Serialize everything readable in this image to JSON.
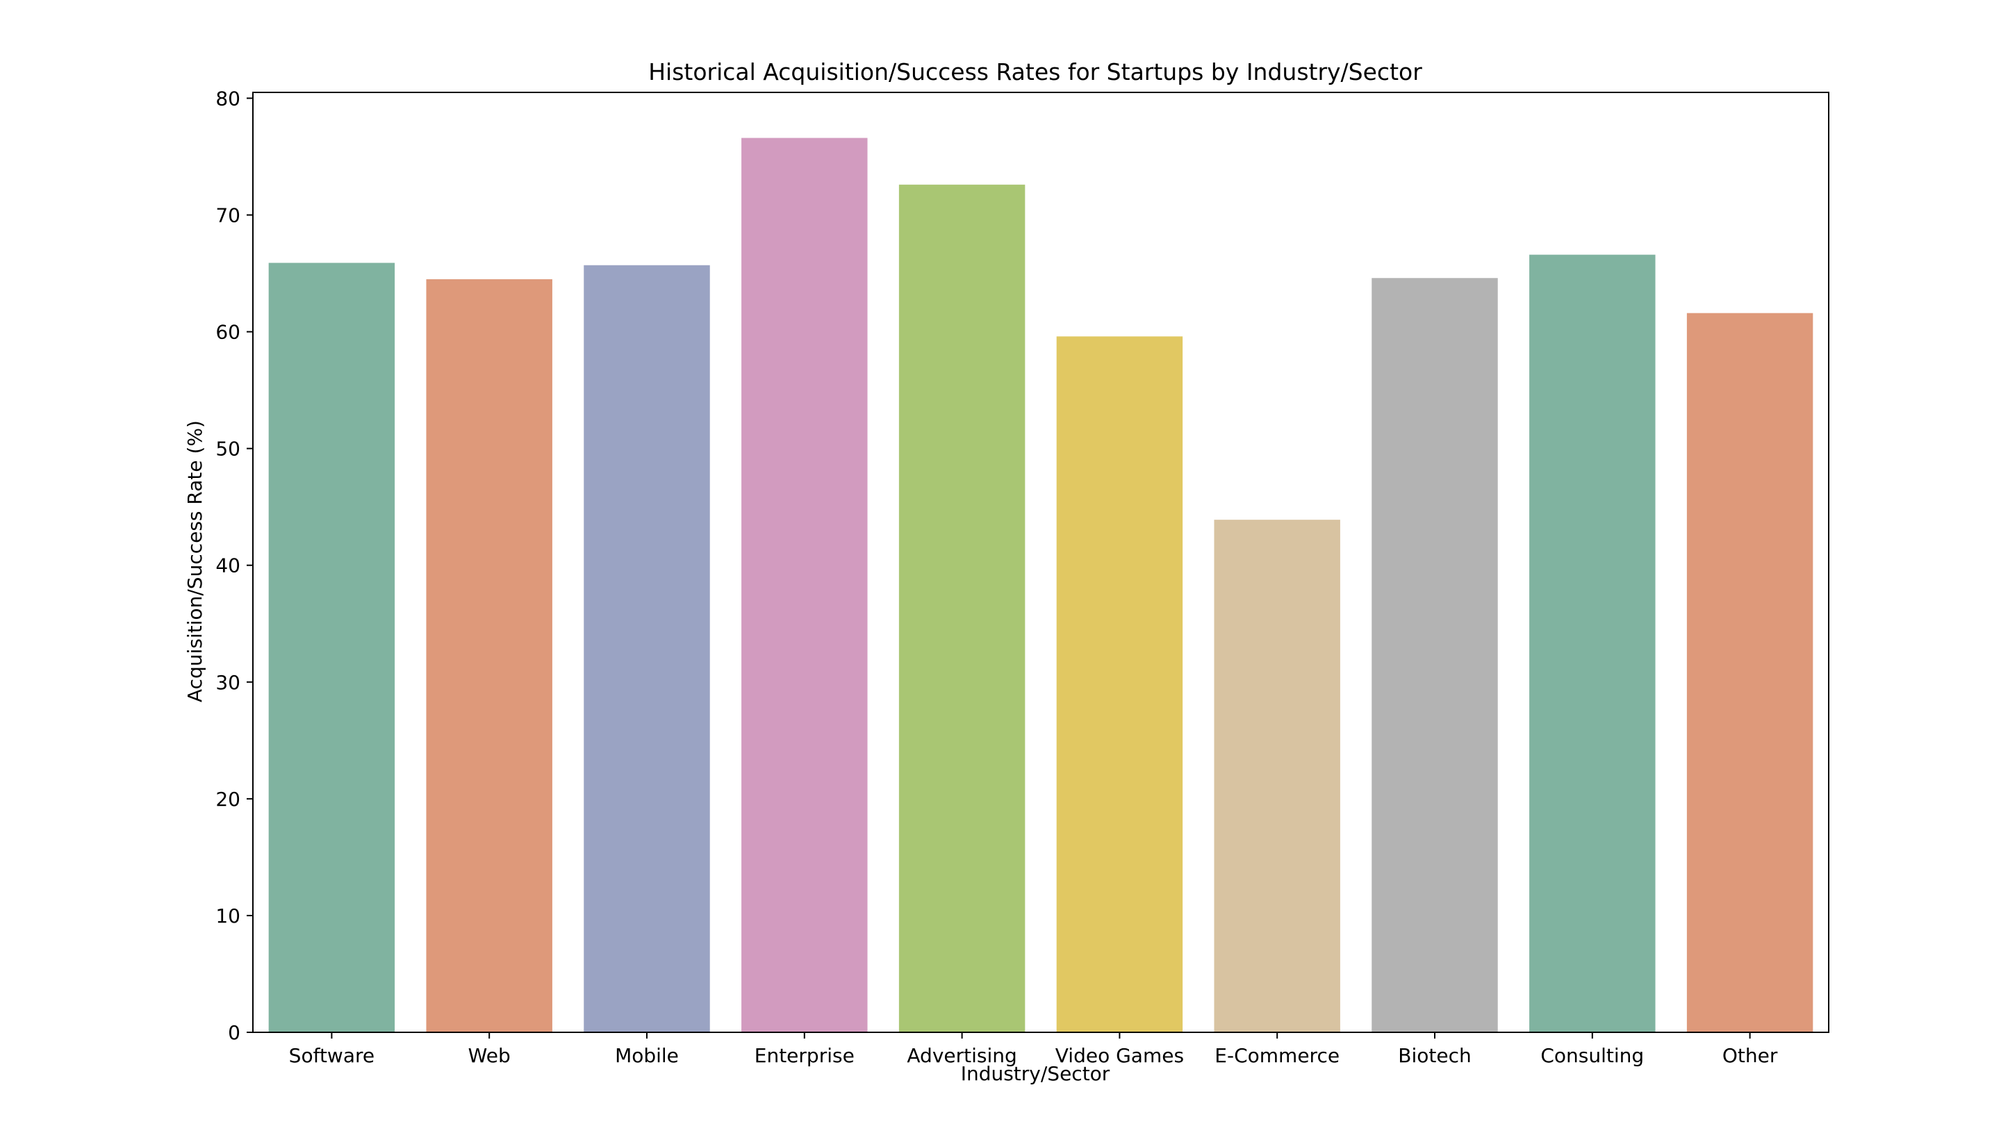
{
  "chart_data": {
    "type": "bar",
    "title": "Historical Acquisition/Success Rates for Startups by Industry/Sector",
    "xlabel": "Industry/Sector",
    "ylabel": "Acquisition/Success Rate (%)",
    "ylim": [
      0,
      80.5
    ],
    "yticks": [
      "0",
      "10",
      "20",
      "30",
      "40",
      "50",
      "60",
      "70",
      "80"
    ],
    "grid": false,
    "legend": "none",
    "categories": [
      "Software",
      "Web",
      "Mobile",
      "Enterprise",
      "Advertising",
      "Video Games",
      "E-Commerce",
      "Biotech",
      "Consulting",
      "Other"
    ],
    "values": [
      65.9,
      64.5,
      65.7,
      76.6,
      72.6,
      59.6,
      43.9,
      64.6,
      66.6,
      61.6
    ],
    "colors": [
      "#80b3a0",
      "#de997a",
      "#9aa3c3",
      "#d29bbf",
      "#a9c673",
      "#e1c862",
      "#d8c3a1",
      "#b3b3b3",
      "#80b3a0",
      "#de997a"
    ],
    "axis_color": "#000000"
  }
}
